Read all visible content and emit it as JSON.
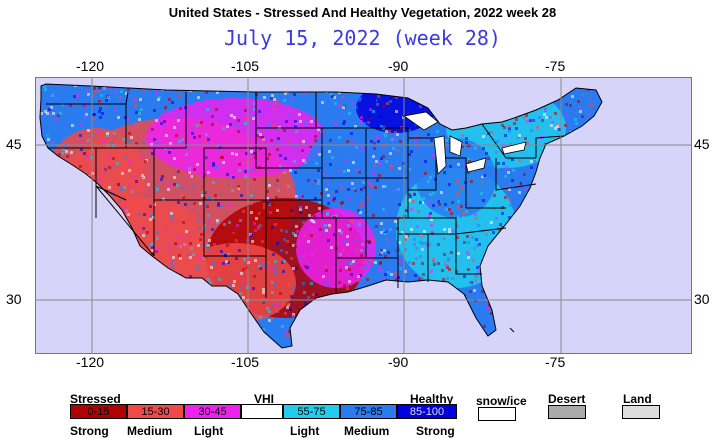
{
  "title": "United States - Stressed And Healthy Vegetation, 2022 week 28",
  "subtitle": "July 15, 2022 (week 28)",
  "map": {
    "lon_ticks_top": [
      "-120",
      "-105",
      "-90",
      "-75"
    ],
    "lon_ticks_bottom": [
      "-120",
      "-105",
      "-90",
      "-75"
    ],
    "lat_ticks_left": [
      "45",
      "30"
    ],
    "lat_ticks_right": [
      "45",
      "30"
    ]
  },
  "legend": {
    "stressed": "Stressed",
    "vhi": "VHI",
    "healthy": "Healthy",
    "bins": [
      {
        "label": "0-15",
        "color": "#b00000"
      },
      {
        "label": "15-30",
        "color": "#ee4a4a"
      },
      {
        "label": "30-45",
        "color": "#ee22ee"
      },
      {
        "label": "",
        "color": "#ffffff"
      },
      {
        "label": "55-75",
        "color": "#22ccee"
      },
      {
        "label": "75-85",
        "color": "#2a7bf0"
      },
      {
        "label": "85-100",
        "color": "#0000dd"
      }
    ],
    "strength": [
      "Strong",
      "Medium",
      "Light",
      "Light",
      "Medium",
      "Strong"
    ],
    "extra": [
      {
        "label": "snow/ice",
        "color": "#ffffff"
      },
      {
        "label": "Desert",
        "color": "#aaaaaa"
      },
      {
        "label": "Land",
        "color": "#dddddd"
      }
    ]
  }
}
